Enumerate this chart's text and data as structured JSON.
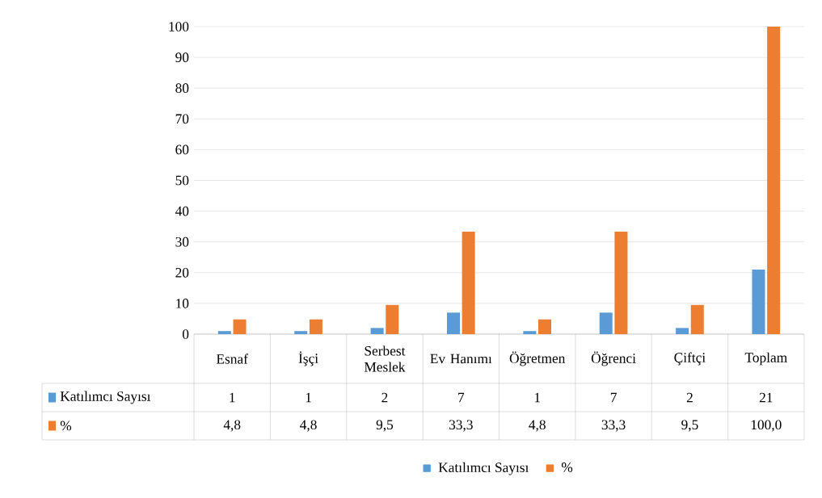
{
  "chart_data": {
    "type": "bar",
    "categories": [
      "Esnaf",
      "İşçi",
      "Serbest Meslek",
      "Ev Hanımı",
      "Öğretmen",
      "Öğrenci",
      "Çiftçi",
      "Toplam"
    ],
    "series": [
      {
        "name": "Katılımcı Sayısı",
        "color": "#5b9bd5",
        "values": [
          1,
          1,
          2,
          7,
          1,
          7,
          2,
          21
        ],
        "value_labels": [
          "1",
          "1",
          "2",
          "7",
          "1",
          "7",
          "2",
          "21"
        ]
      },
      {
        "name": "%",
        "color": "#ed7d31",
        "values": [
          4.8,
          4.8,
          9.5,
          33.3,
          4.8,
          33.3,
          9.5,
          100
        ],
        "value_labels": [
          "4,8",
          "4,8",
          "9,5",
          "33,3",
          "4,8",
          "33,3",
          "9,5",
          "100,0"
        ]
      }
    ],
    "ylim": [
      0,
      100
    ],
    "yticks": [
      0,
      10,
      20,
      30,
      40,
      50,
      60,
      70,
      80,
      90,
      100
    ],
    "grid": "y",
    "legend": "bottom"
  }
}
